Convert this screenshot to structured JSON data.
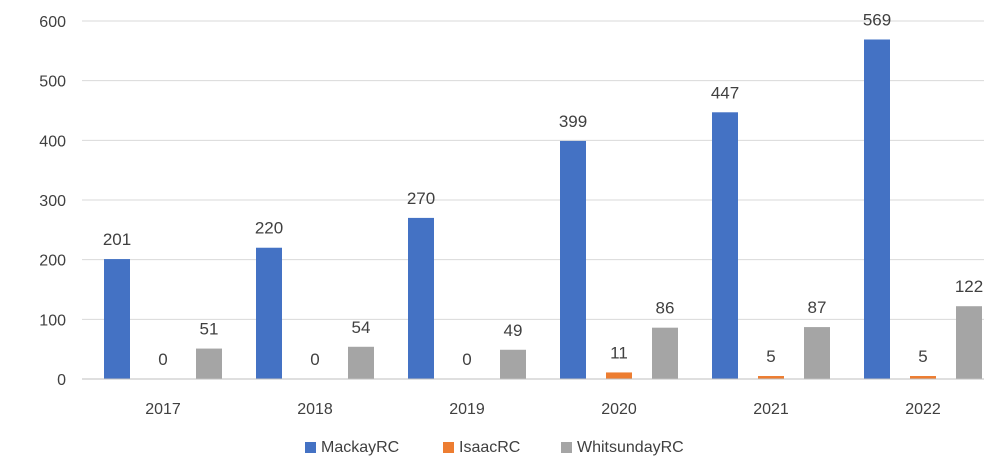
{
  "chart_data": {
    "type": "bar",
    "title": "",
    "xlabel": "",
    "ylabel": "",
    "categories": [
      "2017",
      "2018",
      "2019",
      "2020",
      "2021",
      "2022"
    ],
    "series": [
      {
        "name": "MackayRC",
        "color": "#4472c4",
        "values": [
          201,
          220,
          270,
          399,
          447,
          569
        ]
      },
      {
        "name": "IsaacRC",
        "color": "#ed7d31",
        "values": [
          0,
          0,
          0,
          11,
          5,
          5
        ]
      },
      {
        "name": "WhitsundayRC",
        "color": "#a5a5a5",
        "values": [
          51,
          54,
          49,
          86,
          87,
          122
        ]
      }
    ],
    "ylim": [
      0,
      600
    ],
    "yticks": [
      0,
      100,
      200,
      300,
      400,
      500,
      600
    ],
    "ytick_labels": [
      "0",
      "100",
      "200",
      "300",
      "400",
      "500",
      "600"
    ],
    "grid": true,
    "data_labels": true,
    "legend": "bottom-center"
  }
}
